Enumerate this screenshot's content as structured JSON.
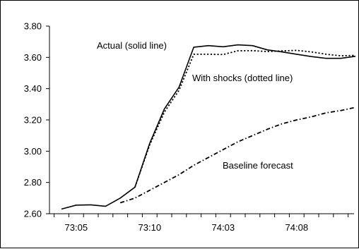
{
  "chart_data": {
    "type": "line",
    "title": "",
    "xlabel": "",
    "ylabel": "",
    "x": [
      "73:04",
      "73:05",
      "73:06",
      "73:07",
      "73:08",
      "73:09",
      "73:10",
      "73:11",
      "73:12",
      "74:01",
      "74:02",
      "74:03",
      "74:04",
      "74:05",
      "74:06",
      "74:07",
      "74:08",
      "74:09",
      "74:10",
      "74:11",
      "74:12",
      "75:01"
    ],
    "x_tick_labels": [
      "73:05",
      "73:10",
      "74:03",
      "74:08"
    ],
    "ylim": [
      2.6,
      3.8
    ],
    "y_ticks": [
      "2.60",
      "2.80",
      "3.00",
      "3.20",
      "3.40",
      "3.60",
      "3.80"
    ],
    "grid": "none",
    "series": [
      {
        "name": "Actual (solid line)",
        "style": "solid",
        "color": "#000000",
        "values": [
          2.63,
          2.655,
          2.657,
          2.648,
          2.7,
          2.77,
          3.05,
          3.27,
          3.41,
          3.665,
          3.675,
          3.668,
          3.68,
          3.675,
          3.648,
          3.635,
          3.62,
          3.605,
          3.594,
          3.594,
          3.607,
          null
        ]
      },
      {
        "name": "With shocks (dotted line)",
        "style": "dotted",
        "color": "#000000",
        "values": [
          null,
          null,
          null,
          null,
          null,
          2.77,
          3.04,
          3.25,
          3.39,
          3.62,
          3.62,
          3.618,
          3.642,
          3.643,
          3.637,
          3.641,
          3.645,
          3.635,
          3.62,
          3.61,
          3.613,
          null
        ]
      },
      {
        "name": "Baseline forecast",
        "style": "dashdot",
        "color": "#000000",
        "values": [
          null,
          null,
          null,
          null,
          2.67,
          2.7,
          2.75,
          2.8,
          2.85,
          2.91,
          2.96,
          3.01,
          3.06,
          3.1,
          3.14,
          3.175,
          3.2,
          3.22,
          3.245,
          3.26,
          3.28,
          null
        ]
      }
    ]
  }
}
